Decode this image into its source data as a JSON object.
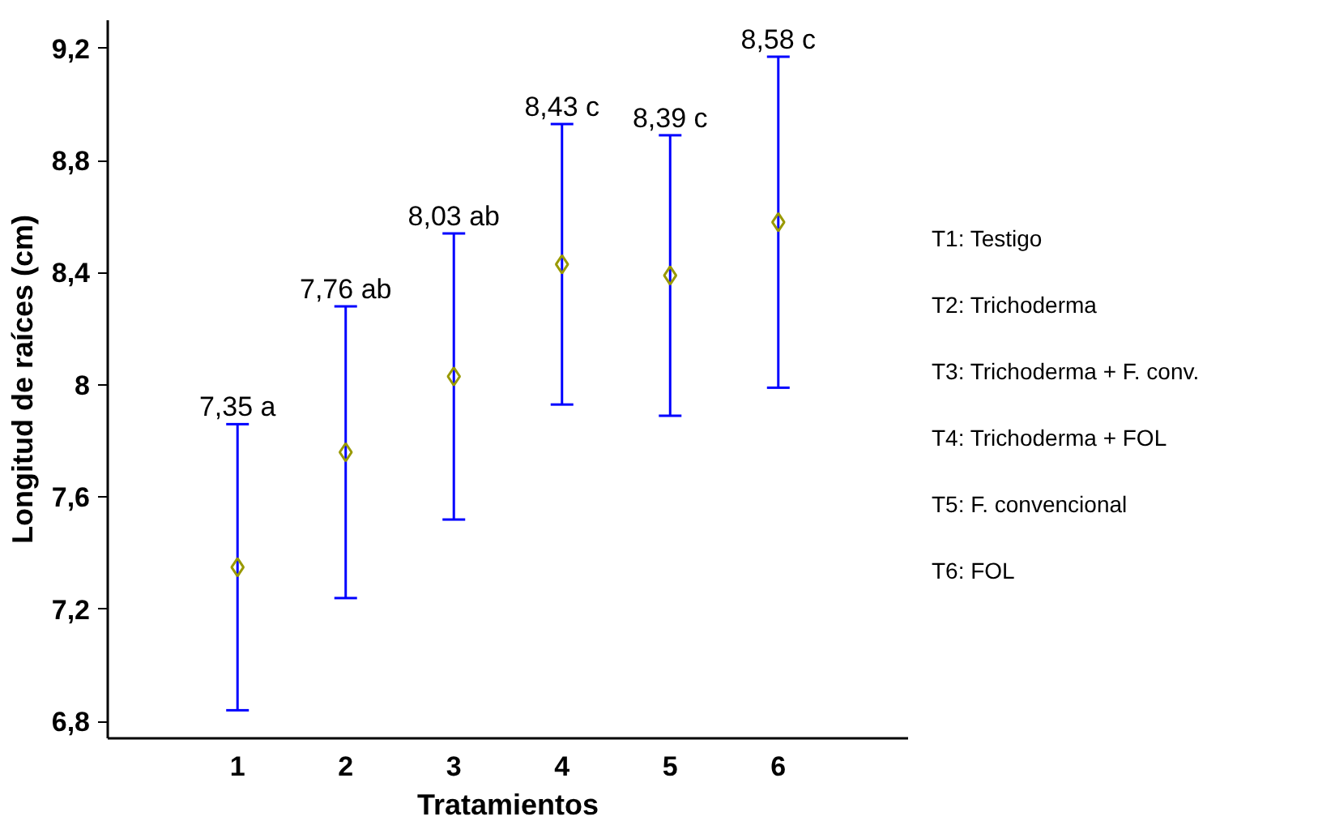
{
  "chart_data": {
    "type": "scatter",
    "xlabel": "Tratamientos",
    "ylabel": "Longitud de raíces (cm)",
    "x": [
      1,
      2,
      3,
      4,
      5,
      6
    ],
    "series": [
      {
        "color": "#999900",
        "values": [
          7.35,
          7.76,
          8.03,
          8.43,
          8.39,
          8.58
        ],
        "errors": [
          0.51,
          0.52,
          0.51,
          0.5,
          0.5,
          0.59
        ]
      }
    ],
    "marker": "diamond",
    "xlim": [
      -0.2,
      7.2
    ],
    "xticks": [
      1,
      2,
      3,
      4,
      5,
      6
    ],
    "ylim": [
      6.74,
      9.3
    ],
    "yticks": [
      {
        "value": 6.8,
        "label": "6,8"
      },
      {
        "value": 7.2,
        "label": "7,2"
      },
      {
        "value": 7.6,
        "label": "7,6"
      },
      8,
      {
        "value": 8.4,
        "label": "8,4"
      },
      {
        "value": 8.8,
        "label": "8,8"
      },
      {
        "value": 9.2,
        "label": "9,2"
      }
    ],
    "grid": false,
    "annotations": [
      {
        "text": "7,35 a",
        "x": 1,
        "y": 7.86
      },
      {
        "text": "7,76 ab",
        "x": 2,
        "y": 8.28
      },
      {
        "text": "8,03 ab",
        "x": 3,
        "y": 8.54
      },
      {
        "text": "8,43 c",
        "x": 4,
        "y": 8.93
      },
      {
        "text": "8,39 c",
        "x": 5,
        "y": 8.89
      },
      {
        "text": "8,58 c",
        "x": 6,
        "y": 9.17
      },
      "T1: Testigo",
      "T2: Trichoderma",
      "T3: Trichoderma + F. conv.",
      "T4: Trichoderma + FOL",
      "T5: F. convencional",
      "T6: FOL"
    ]
  }
}
